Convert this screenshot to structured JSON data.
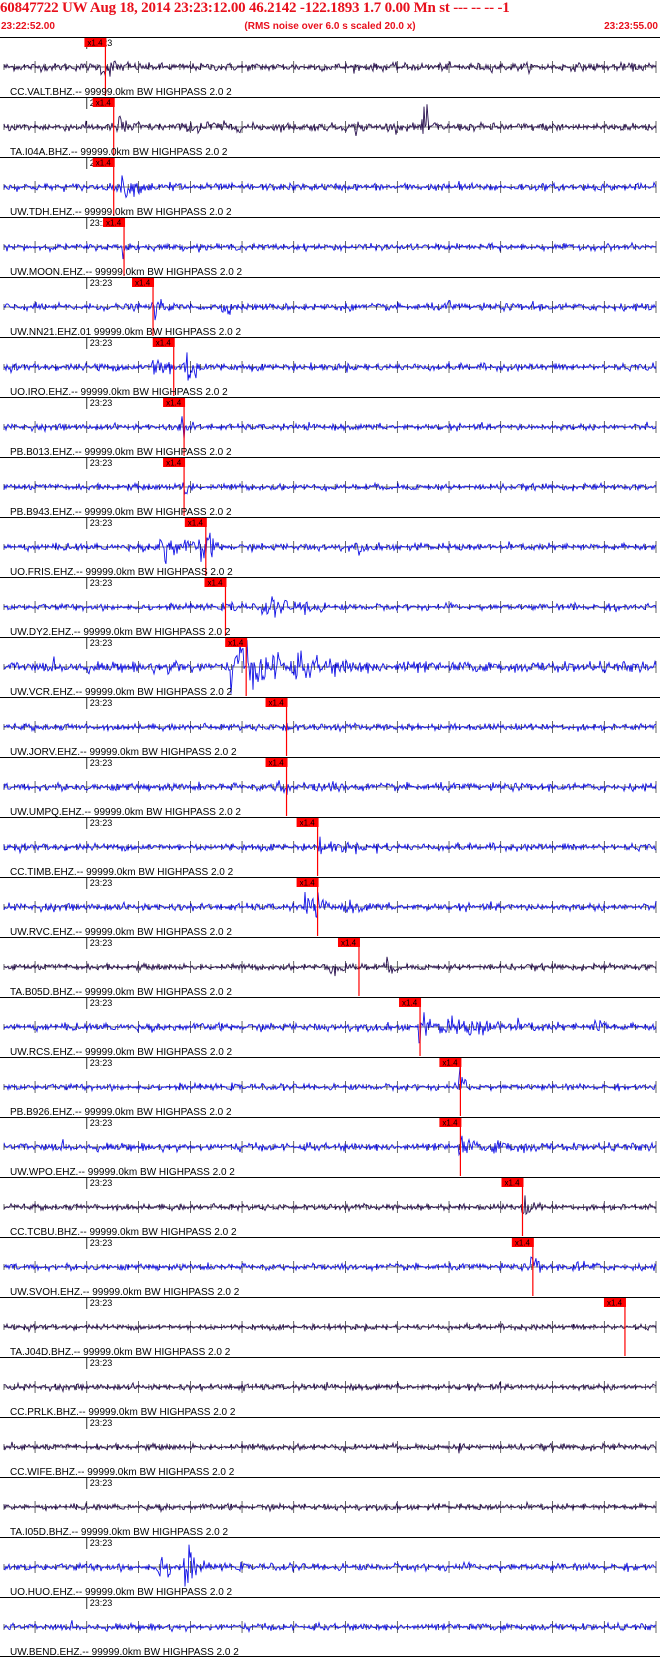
{
  "header": {
    "title": "60847722 UW Aug 18, 2014 23:23:12.00   46.2142 -122.1893  1.7 0.00 Mn st --- -- --  -1",
    "start_time": "23:22:52.00",
    "noise_note": "(RMS noise over 6.0 s scaled 20.0 x)",
    "end_time": "23:23:55.00"
  },
  "colors": {
    "text_red": "#e8101c",
    "trace_blue": "#1414e6",
    "trace_dark": "#2a1250",
    "pick_red": "#ff0000",
    "tick": "#000000"
  },
  "chart_data": {
    "type": "line",
    "x_range_seconds": [
      0,
      63
    ],
    "minute_label": "23:23",
    "minute_mark_seconds": 8,
    "pick_label": "x1.4",
    "traces": [
      {
        "label": "CC.VALT.BHZ.-- 99999.0km BW  HIGHPASS  2.0  2",
        "pick_s": 9.8,
        "color": "trace_dark",
        "noise": 0.16,
        "bursts": [
          [
            9.5,
            3.5,
            0.55
          ],
          [
            12,
            2,
            0.3
          ]
        ]
      },
      {
        "label": "TA.I04A.BHZ.-- 99999.0km BW  HIGHPASS  2.0  2",
        "pick_s": 10.6,
        "color": "trace_dark",
        "noise": 0.16,
        "bursts": [
          [
            11,
            4,
            0.55
          ],
          [
            18,
            12,
            0.35
          ],
          [
            34,
            3,
            0.35
          ],
          [
            40.5,
            1.5,
            0.9
          ]
        ]
      },
      {
        "label": "UW.TDH.EHZ.-- 99999.0km BW  HIGHPASS  2.0  2",
        "pick_s": 10.6,
        "color": "trace_blue",
        "noise": 0.14,
        "bursts": [
          [
            11,
            5,
            0.55
          ],
          [
            16,
            4,
            0.35
          ],
          [
            44,
            2,
            0.3
          ],
          [
            47,
            1.5,
            0.3
          ]
        ]
      },
      {
        "label": "UW.MOON.EHZ.-- 99999.0km BW  HIGHPASS  2.0  2",
        "pick_s": 11.6,
        "color": "trace_blue",
        "noise": 0.12,
        "bursts": [
          [
            11.5,
            2,
            0.45
          ]
        ]
      },
      {
        "label": "UW.NN21.EHZ.01 99999.0km BW  HIGHPASS  2.0  2",
        "pick_s": 14.4,
        "color": "trace_blue",
        "noise": 0.14,
        "bursts": [
          [
            14.5,
            1.5,
            0.55
          ],
          [
            21,
            4,
            0.3
          ],
          [
            43,
            1,
            0.4
          ],
          [
            51,
            1,
            0.35
          ]
        ]
      },
      {
        "label": "UO.IRO.EHZ.-- 99999.0km BW  HIGHPASS  2.0  2",
        "pick_s": 16.4,
        "color": "trace_blue",
        "noise": 0.14,
        "bursts": [
          [
            14.5,
            3,
            0.8
          ],
          [
            17.5,
            2.5,
            1.0
          ],
          [
            9,
            1,
            0.4
          ]
        ]
      },
      {
        "label": "PB.B013.EHZ.-- 99999.0km BW  HIGHPASS  2.0  2",
        "pick_s": 17.4,
        "color": "trace_blue",
        "noise": 0.12,
        "bursts": [
          [
            17,
            2,
            0.6
          ]
        ]
      },
      {
        "label": "PB.B943.EHZ.-- 99999.0km BW  HIGHPASS  2.0  2",
        "pick_s": 17.4,
        "color": "trace_blue",
        "noise": 0.12,
        "bursts": [
          [
            17,
            2,
            0.6
          ]
        ]
      },
      {
        "label": "UO.FRIS.EHZ.-- 99999.0km BW  HIGHPASS  2.0  2",
        "pick_s": 19.5,
        "color": "trace_blue",
        "noise": 0.14,
        "bursts": [
          [
            15,
            4,
            0.85
          ],
          [
            19,
            2,
            1.0
          ],
          [
            34,
            2,
            0.35
          ]
        ]
      },
      {
        "label": "UW.DY2.EHZ.-- 99999.0km BW  HIGHPASS  2.0  2",
        "pick_s": 21.4,
        "color": "trace_blue",
        "noise": 0.12,
        "bursts": [
          [
            22,
            3,
            0.3
          ],
          [
            25,
            7,
            0.45
          ],
          [
            29,
            3,
            0.5
          ],
          [
            55,
            1,
            0.35
          ],
          [
            59,
            1,
            0.3
          ]
        ]
      },
      {
        "label": "UW.VCR.EHZ.-- 99999.0km BW  HIGHPASS  2.0  2",
        "pick_s": 23.4,
        "color": "trace_blue",
        "noise": 0.2,
        "bursts": [
          [
            16,
            6,
            0.45
          ],
          [
            22,
            16,
            1.0
          ],
          [
            38,
            10,
            0.35
          ]
        ]
      },
      {
        "label": "UW.JORV.EHZ.-- 99999.0km BW  HIGHPASS  2.0  2",
        "pick_s": 27.3,
        "color": "trace_blue",
        "noise": 0.13,
        "bursts": [
          [
            27,
            3,
            0.3
          ]
        ]
      },
      {
        "label": "UW.UMPQ.EHZ.-- 99999.0km BW  HIGHPASS  2.0  2",
        "pick_s": 27.3,
        "color": "trace_blue",
        "noise": 0.15,
        "bursts": [
          [
            26.5,
            2,
            0.7
          ],
          [
            30,
            10,
            0.3
          ]
        ]
      },
      {
        "label": "CC.TIMB.EHZ.-- 99999.0km BW  HIGHPASS  2.0  2",
        "pick_s": 30.3,
        "color": "trace_blue",
        "noise": 0.14,
        "bursts": [
          [
            30,
            10,
            0.35
          ],
          [
            36,
            3,
            0.35
          ]
        ]
      },
      {
        "label": "UW.RVC.EHZ.-- 99999.0km BW  HIGHPASS  2.0  2",
        "pick_s": 30.3,
        "color": "trace_blue",
        "noise": 0.14,
        "bursts": [
          [
            29,
            4,
            0.65
          ],
          [
            33,
            8,
            0.3
          ]
        ]
      },
      {
        "label": "TA.B05D.BHZ.-- 99999.0km BW  HIGHPASS  2.0  2",
        "pick_s": 34.3,
        "color": "trace_dark",
        "noise": 0.12,
        "bursts": [
          [
            31,
            9,
            0.3
          ],
          [
            37,
            2,
            0.45
          ]
        ]
      },
      {
        "label": "UW.RCS.EHZ.-- 99999.0km BW  HIGHPASS  2.0  2",
        "pick_s": 40.2,
        "color": "trace_blue",
        "noise": 0.15,
        "bursts": [
          [
            40.2,
            1.2,
            1.0
          ],
          [
            42,
            20,
            0.45
          ],
          [
            46,
            2,
            0.6
          ],
          [
            57,
            3,
            0.5
          ]
        ]
      },
      {
        "label": "PB.B926.EHZ.-- 99999.0km BW  HIGHPASS  2.0  2",
        "pick_s": 44.1,
        "color": "trace_blue",
        "noise": 0.12,
        "bursts": [
          [
            44,
            2,
            0.6
          ]
        ]
      },
      {
        "label": "UW.WPO.EHZ.-- 99999.0km BW  HIGHPASS  2.0  2",
        "pick_s": 44.1,
        "color": "trace_blue",
        "noise": 0.15,
        "bursts": [
          [
            44,
            3,
            0.55
          ],
          [
            47,
            16,
            0.3
          ]
        ]
      },
      {
        "label": "CC.TCBU.BHZ.-- 99999.0km BW  HIGHPASS  2.0  2",
        "pick_s": 50.1,
        "color": "trace_dark",
        "noise": 0.12,
        "bursts": [
          [
            50,
            2.5,
            0.55
          ]
        ]
      },
      {
        "label": "UW.SVOH.EHZ.-- 99999.0km BW  HIGHPASS  2.0  2",
        "pick_s": 51.1,
        "color": "trace_blue",
        "noise": 0.13,
        "bursts": [
          [
            51,
            2,
            0.55
          ],
          [
            55,
            8,
            0.3
          ]
        ]
      },
      {
        "label": "TA.J04D.BHZ.-- 99999.0km BW  HIGHPASS  2.0  2",
        "pick_s": 60.0,
        "color": "trace_dark",
        "noise": 0.11,
        "bursts": []
      },
      {
        "label": "CC.PRLK.BHZ.-- 99999.0km BW  HIGHPASS  2.0  2",
        "pick_s": null,
        "color": "trace_dark",
        "noise": 0.12,
        "bursts": [
          [
            23,
            1,
            0.3
          ]
        ]
      },
      {
        "label": "CC.WIFE.BHZ.-- 99999.0km BW  HIGHPASS  2.0  2",
        "pick_s": null,
        "color": "trace_dark",
        "noise": 0.12,
        "bursts": [
          [
            44,
            1,
            0.3
          ]
        ]
      },
      {
        "label": "TA.I05D.BHZ.-- 99999.0km BW  HIGHPASS  2.0  2",
        "pick_s": null,
        "color": "trace_dark",
        "noise": 0.12,
        "bursts": []
      },
      {
        "label": "UO.HUO.EHZ.-- 99999.0km BW  HIGHPASS  2.0  2",
        "pick_s": null,
        "color": "trace_blue",
        "noise": 0.14,
        "bursts": [
          [
            15,
            2.5,
            0.7
          ],
          [
            17.5,
            2,
            1.0
          ]
        ]
      },
      {
        "label": "UW.BEND.EHZ.-- 99999.0km BW  HIGHPASS  2.0  2",
        "pick_s": null,
        "color": "trace_blue",
        "noise": 0.13,
        "bursts": []
      }
    ]
  }
}
